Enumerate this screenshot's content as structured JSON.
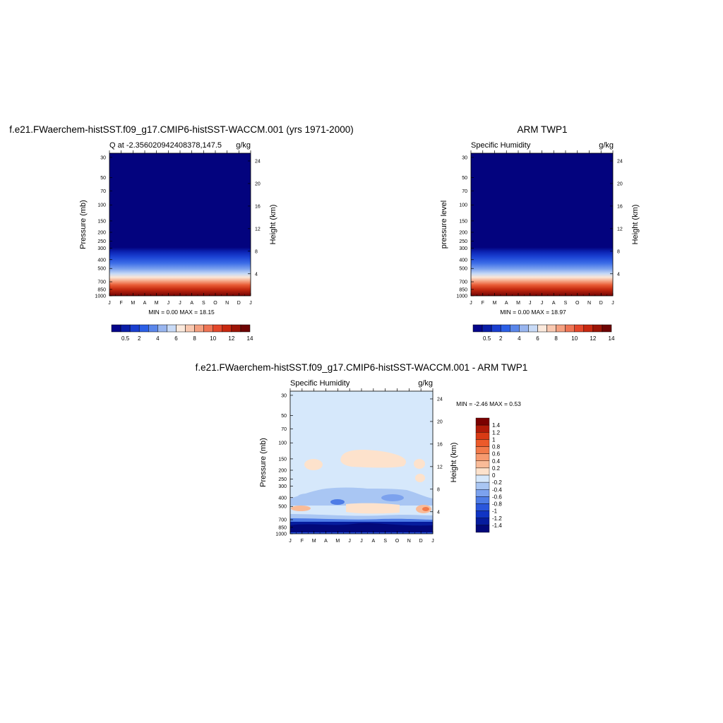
{
  "chart_data": [
    {
      "type": "contour",
      "title": "f.e21.FWaerchem-histSST.f09_g17.CMIP6-histSST-WACCM.001 (yrs 1971-2000)",
      "left_label": "Q at -2.356020942408378,147.5",
      "right_label": "g/kg",
      "ylabel": "Pressure (mb)",
      "ylabel_right": "Height (km)",
      "x_ticks": [
        "J",
        "F",
        "M",
        "A",
        "M",
        "J",
        "J",
        "A",
        "S",
        "O",
        "N",
        "D",
        "J"
      ],
      "y_ticks": [
        "30",
        "50",
        "70",
        "100",
        "150",
        "200",
        "250",
        "300",
        "400",
        "500",
        "700",
        "850",
        "1000"
      ],
      "y2_ticks": [
        "24",
        "20",
        "16",
        "12",
        "8",
        "4"
      ],
      "min_max_text": "MIN =   0.00 MAX =  18.15",
      "min": 0.0,
      "max": 18.15,
      "colorbar_labels": [
        "0.5",
        "2",
        "4",
        "6",
        "8",
        "10",
        "12",
        "14"
      ],
      "colorbar_colors": [
        "#06068a",
        "#0a1ea8",
        "#1a3fd0",
        "#2b5fe6",
        "#5a86ea",
        "#98b5ef",
        "#c8daf6",
        "#fbe9dc",
        "#f9c8b0",
        "#f5a080",
        "#ef7454",
        "#e4472a",
        "#c82810",
        "#9c1406",
        "#6e0404"
      ]
    },
    {
      "type": "contour",
      "title": "ARM TWP1",
      "left_label": "Specific Humidity",
      "right_label": "g/kg",
      "ylabel": "pressure level",
      "ylabel_right": "Height (km)",
      "x_ticks": [
        "J",
        "F",
        "M",
        "A",
        "M",
        "J",
        "J",
        "A",
        "S",
        "O",
        "N",
        "D",
        "J"
      ],
      "y_ticks": [
        "30",
        "50",
        "70",
        "100",
        "150",
        "200",
        "250",
        "300",
        "400",
        "500",
        "700",
        "850",
        "1000"
      ],
      "y2_ticks": [
        "24",
        "20",
        "16",
        "12",
        "8",
        "4"
      ],
      "min_max_text": "MIN =   0.00 MAX =  18.97",
      "min": 0.0,
      "max": 18.97,
      "colorbar_labels": [
        "0.5",
        "2",
        "4",
        "6",
        "8",
        "10",
        "12",
        "14"
      ]
    },
    {
      "type": "contour",
      "title": "f.e21.FWaerchem-histSST.f09_g17.CMIP6-histSST-WACCM.001 - ARM TWP1",
      "left_label": "Specific Humidity",
      "right_label": "g/kg",
      "ylabel": "Pressure (mb)",
      "ylabel_right": "Height (km)",
      "x_ticks": [
        "J",
        "F",
        "M",
        "A",
        "M",
        "J",
        "J",
        "A",
        "S",
        "O",
        "N",
        "D",
        "J"
      ],
      "y_ticks": [
        "30",
        "50",
        "70",
        "100",
        "150",
        "200",
        "250",
        "300",
        "400",
        "500",
        "700",
        "850",
        "1000"
      ],
      "y2_ticks": [
        "24",
        "20",
        "16",
        "12",
        "8",
        "4"
      ],
      "min_max_text": "MIN =  -2.46 MAX =   0.53",
      "min": -2.46,
      "max": 0.53,
      "colorbar_labels": [
        "1.4",
        "1.2",
        "1",
        "0.8",
        "0.6",
        "0.4",
        "0.2",
        "0",
        "-0.2",
        "-0.4",
        "-0.6",
        "-0.8",
        "-1",
        "-1.2",
        "-1.4"
      ],
      "colorbar_colors": [
        "#7a0000",
        "#b01a08",
        "#d83a14",
        "#ec5a2a",
        "#f27a4a",
        "#f69a70",
        "#f9bb98",
        "#fde2cc",
        "#d6e8fb",
        "#a9c6f3",
        "#7ca2ee",
        "#4e7ce6",
        "#2a56dc",
        "#1034c4",
        "#061c9e",
        "#02087a"
      ]
    }
  ]
}
